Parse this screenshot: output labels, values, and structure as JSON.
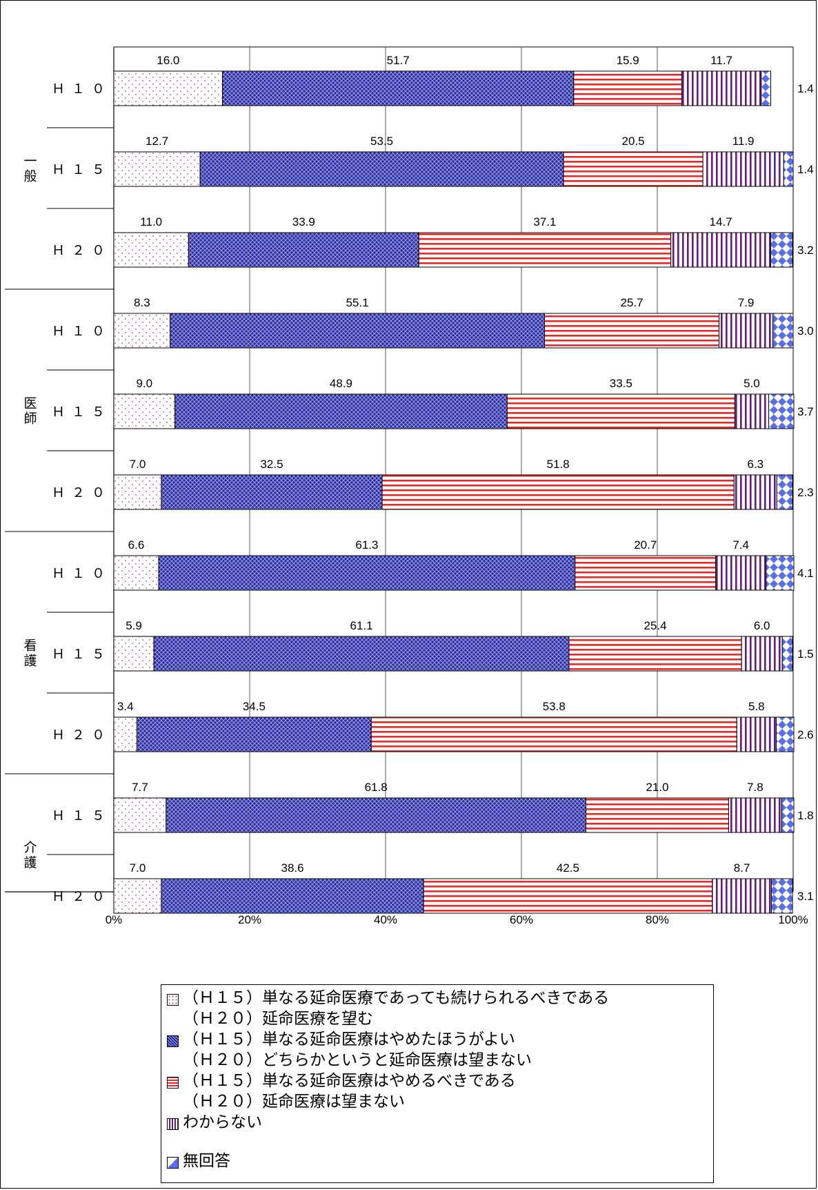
{
  "chart_data": {
    "type": "bar",
    "orientation": "horizontal",
    "stacked": "percent",
    "xlim": [
      0,
      100
    ],
    "x_ticks": [
      "0%",
      "20%",
      "40%",
      "60%",
      "80%",
      "100%"
    ],
    "groups": [
      {
        "label": "一般",
        "rows": [
          "Ｈ１０",
          "Ｈ１５",
          "Ｈ２０"
        ]
      },
      {
        "label": "医師",
        "rows": [
          "Ｈ１０",
          "Ｈ１５",
          "Ｈ２０"
        ]
      },
      {
        "label": "看護",
        "rows": [
          "Ｈ１０",
          "Ｈ１５",
          "Ｈ２０"
        ]
      },
      {
        "label": "介護",
        "rows": [
          "Ｈ１５",
          "Ｈ２０"
        ]
      }
    ],
    "categories": [
      "一般 Ｈ１０",
      "一般 Ｈ１５",
      "一般 Ｈ２０",
      "医師 Ｈ１０",
      "医師 Ｈ１５",
      "医師 Ｈ２０",
      "看護 Ｈ１０",
      "看護 Ｈ１５",
      "看護 Ｈ２０",
      "介護 Ｈ１５",
      "介護 Ｈ２０"
    ],
    "series": [
      {
        "values": [
          16.0,
          12.7,
          11.0,
          8.3,
          9.0,
          7.0,
          6.6,
          5.9,
          3.4,
          7.7,
          7.0
        ]
      },
      {
        "values": [
          51.7,
          53.5,
          33.9,
          55.1,
          48.9,
          32.5,
          61.3,
          61.1,
          34.5,
          61.8,
          38.6
        ]
      },
      {
        "values": [
          15.9,
          20.5,
          37.1,
          25.7,
          33.5,
          51.8,
          20.7,
          25.4,
          53.8,
          21.0,
          42.5
        ]
      },
      {
        "values": [
          11.7,
          11.9,
          14.7,
          7.9,
          5.0,
          6.3,
          7.4,
          6.0,
          5.8,
          7.8,
          8.7
        ]
      },
      {
        "values": [
          1.4,
          1.4,
          3.2,
          3.0,
          3.7,
          2.3,
          4.1,
          1.5,
          2.6,
          1.8,
          3.1
        ]
      }
    ],
    "value_labels": [
      [
        "16.0",
        "51.7",
        "15.9",
        "11.7",
        "1.4"
      ],
      [
        "12.7",
        "53.5",
        "20.5",
        "11.9",
        "1.4"
      ],
      [
        "11.0",
        "33.9",
        "37.1",
        "14.7",
        "3.2"
      ],
      [
        "8.3",
        "55.1",
        "25.7",
        "7.9",
        "3.0"
      ],
      [
        "9.0",
        "48.9",
        "33.5",
        "5.0",
        "3.7"
      ],
      [
        "7.0",
        "32.5",
        "51.8",
        "6.3",
        "2.3"
      ],
      [
        "6.6",
        "61.3",
        "20.7",
        "7.4",
        "4.1"
      ],
      [
        "5.9",
        "61.1",
        "25.4",
        "6.0",
        "1.5"
      ],
      [
        "3.4",
        "34.5",
        "53.8",
        "5.8",
        "2.6"
      ],
      [
        "7.7",
        "61.8",
        "21.0",
        "7.8",
        "1.8"
      ],
      [
        "7.0",
        "38.6",
        "42.5",
        "8.7",
        "3.1"
      ]
    ],
    "legend": [
      {
        "lines": [
          "（Ｈ１５）単なる延命医療であっても続けられるべきである",
          "（Ｈ２０）延命医療を望む"
        ],
        "pattern": "dots",
        "color": "#c0389a"
      },
      {
        "lines": [
          "（Ｈ１５）単なる延命医療はやめたほうがよい",
          "（Ｈ２０）どちらかというと延命医療は望まない"
        ],
        "pattern": "crosshatch",
        "color": "#1a1a8c"
      },
      {
        "lines": [
          "（Ｈ１５）単なる延命医療はやめるべきである",
          "（Ｈ２０）延命医療は望まない"
        ],
        "pattern": "hstripes",
        "color": "#e8282a"
      },
      {
        "lines": [
          "わからない"
        ],
        "pattern": "vstripes",
        "color": "#6a1a7a"
      },
      {
        "lines": [
          "無回答"
        ],
        "pattern": "diamonds",
        "color": "#5a6ee8"
      }
    ],
    "legend_placement": "bottom",
    "grid": true
  }
}
